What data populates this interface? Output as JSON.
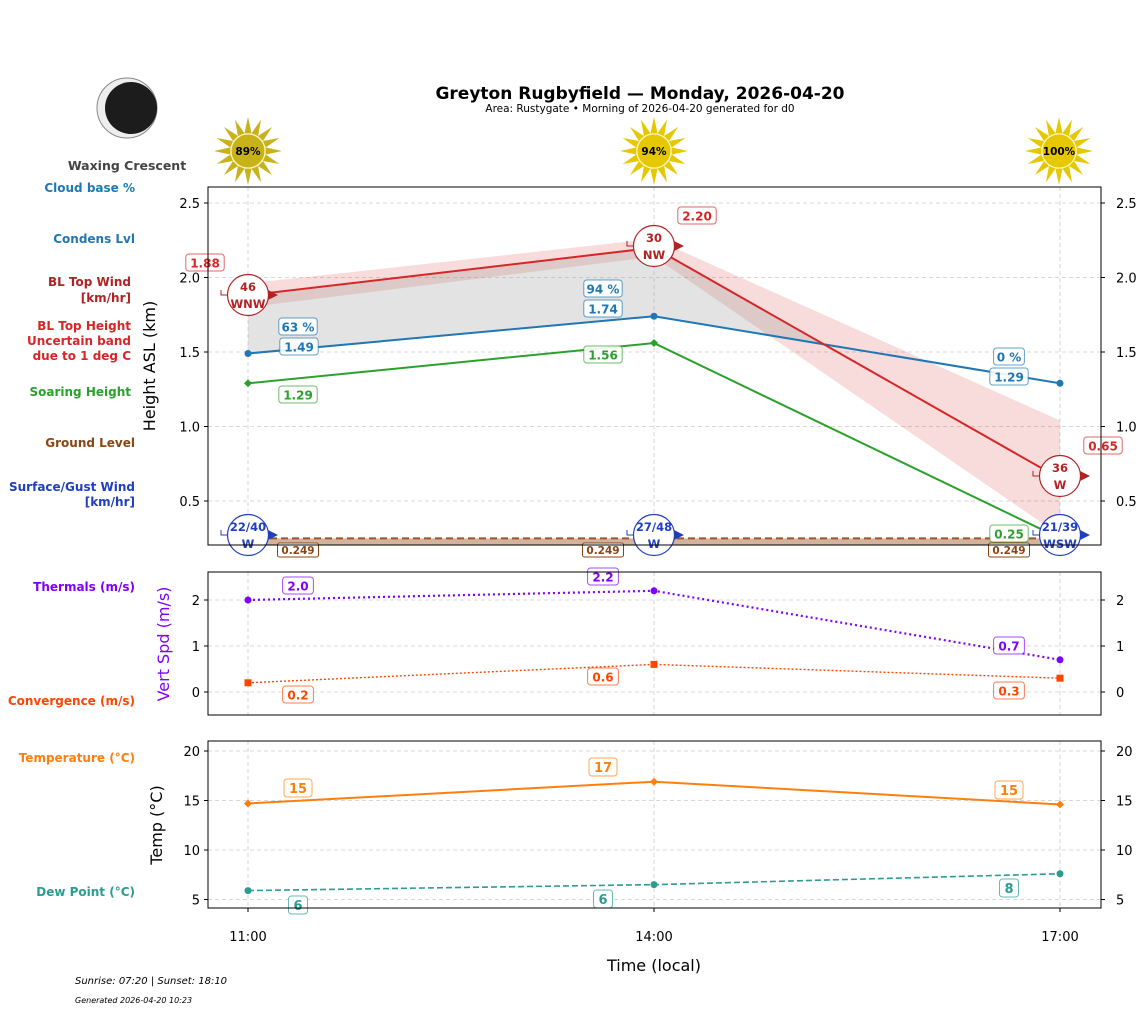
{
  "title": "Greyton Rugbyfield — Monday, 2026-04-20",
  "subtitle": "Area: Rustygate • Morning of 2026-04-20 generated for d0",
  "moon": {
    "phase": "Waxing Crescent",
    "icon": "waxing-crescent-moon-icon"
  },
  "footer": {
    "sun_times": "Sunrise: 07:20 | Sunset: 18:10",
    "generated": "Generated 2026-04-20 10:23"
  },
  "side_labels": {
    "cloud_base": "Cloud base %",
    "condens": "Condens Lvl",
    "bl_wind_1": "BL Top Wind",
    "bl_wind_2": "[km/hr]",
    "bl_height_1": "BL Top Height",
    "bl_height_2": "Uncertain band",
    "bl_height_3": "due to 1 deg C",
    "soaring": "Soaring Height",
    "ground": "Ground Level",
    "surface_1": "Surface/Gust Wind",
    "surface_2": "[km/hr]",
    "thermals": "Thermals (m/s)",
    "convergence": "Convergence (m/s)",
    "temperature": "Temperature (°C)",
    "dewpoint": "Dew Point (°C)"
  },
  "colors": {
    "cloud": "#1f77b4",
    "bl_top": "#d62728",
    "bl_wind": "#b22222",
    "soaring": "#2ca02c",
    "ground": "#8b4513",
    "surface_wind": "#1f3fbf",
    "thermals": "#7f00ff",
    "convergence": "#ff4500",
    "temperature": "#ff7f0e",
    "dewpoint": "#2a9d8f"
  },
  "chart_data": [
    {
      "type": "line",
      "ylabel": "Height ASL (km)",
      "ylim": [
        0.2,
        2.6
      ],
      "yticks": [
        "0.5",
        "1.0",
        "1.5",
        "2.0",
        "2.5"
      ],
      "grid": true,
      "x": [
        "11:00",
        "14:00",
        "17:00"
      ],
      "sun_percent": [
        "89%",
        "94%",
        "100%"
      ],
      "series": {
        "bl_top": {
          "values": [
            1.88,
            2.2,
            0.65
          ],
          "labels": [
            "1.88",
            "2.20",
            "0.65"
          ],
          "band_upper": [
            1.96,
            2.26,
            1.04
          ],
          "band_lower": [
            1.8,
            2.14,
            0.27
          ]
        },
        "condens": {
          "values": [
            1.49,
            1.74,
            1.29
          ],
          "labels": [
            "1.49",
            "1.74",
            "1.29"
          ]
        },
        "cloud_pct": {
          "labels": [
            "63 %",
            "94 %",
            "0 %"
          ]
        },
        "soaring": {
          "values": [
            1.29,
            1.56,
            0.25
          ],
          "labels": [
            "1.29",
            "1.56",
            "0.25"
          ]
        },
        "ground": {
          "values": [
            0.249,
            0.249,
            0.249
          ],
          "labels": [
            "0.249",
            "0.249",
            "0.249"
          ]
        },
        "bl_wind": {
          "speed": [
            "46",
            "30",
            "36"
          ],
          "dir": [
            "WNW",
            "NW",
            "W"
          ]
        },
        "surface_wind": {
          "speed": [
            "22/40",
            "27/48",
            "21/39"
          ],
          "dir": [
            "W",
            "W",
            "WSW"
          ]
        }
      }
    },
    {
      "type": "line",
      "ylabel": "Vert Spd (m/s)",
      "ylim": [
        -0.5,
        2.6
      ],
      "yticks": [
        "0",
        "1",
        "2"
      ],
      "grid": true,
      "x": [
        "11:00",
        "14:00",
        "17:00"
      ],
      "series": {
        "thermals": {
          "values": [
            2.0,
            2.2,
            0.7
          ],
          "labels": [
            "2.0",
            "2.2",
            "0.7"
          ]
        },
        "convergence": {
          "values": [
            0.2,
            0.6,
            0.3
          ],
          "labels": [
            "0.2",
            "0.6",
            "0.3"
          ]
        }
      }
    },
    {
      "type": "line",
      "ylabel": "Temp (°C)",
      "xlabel": "Time (local)",
      "ylim": [
        4,
        21
      ],
      "yticks": [
        "5",
        "10",
        "15",
        "20"
      ],
      "grid": true,
      "x": [
        "11:00",
        "14:00",
        "17:00"
      ],
      "series": {
        "temperature": {
          "values": [
            14.7,
            16.9,
            14.6
          ],
          "labels": [
            "15",
            "17",
            "15"
          ]
        },
        "dewpoint": {
          "values": [
            5.9,
            6.5,
            7.6
          ],
          "labels": [
            "6",
            "6",
            "8"
          ]
        }
      }
    }
  ]
}
